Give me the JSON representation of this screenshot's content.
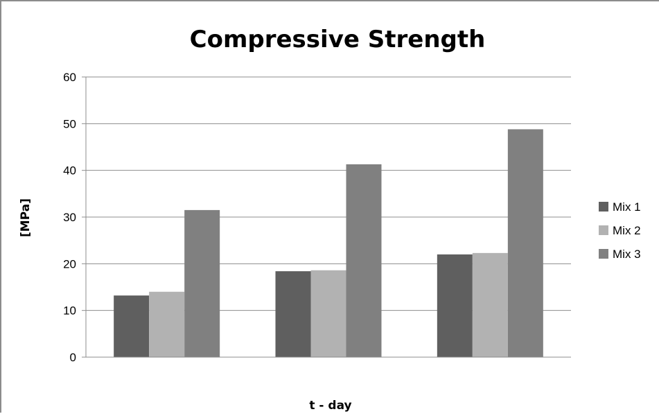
{
  "chart_data": {
    "type": "bar",
    "title": "Compressive Strength",
    "xlabel": "t - day",
    "ylabel": "[MPa]",
    "ylim": [
      0,
      60
    ],
    "yticks": [
      0,
      10,
      20,
      30,
      40,
      50,
      60
    ],
    "grid": true,
    "legend_position": "right",
    "categories": [
      "",
      "",
      ""
    ],
    "series": [
      {
        "name": "Mix 1",
        "color": "#5f5f5f",
        "values": [
          13.2,
          18.4,
          22.0
        ]
      },
      {
        "name": "Mix 2",
        "color": "#b2b2b2",
        "values": [
          14.0,
          18.6,
          22.3
        ]
      },
      {
        "name": "Mix 3",
        "color": "#808080",
        "values": [
          31.5,
          41.3,
          48.8
        ]
      }
    ]
  }
}
